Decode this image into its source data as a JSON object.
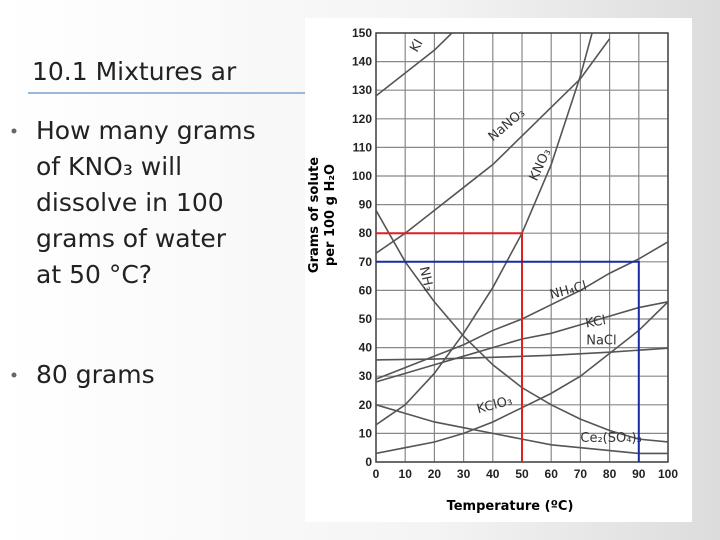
{
  "slide": {
    "title": "10.1 Mixtures ar",
    "question": [
      "How many grams",
      "of KNO₃ will",
      "dissolve in 100",
      "grams of water",
      "at 50 °C?"
    ],
    "answer": "80 grams"
  },
  "chart_data": {
    "type": "line",
    "ylabel": [
      "Grams of solute",
      "per 100 g H₂O"
    ],
    "xlabel": "Temperature (ºC)",
    "xlim": [
      0,
      100
    ],
    "xticks": [
      0,
      10,
      20,
      30,
      40,
      50,
      60,
      70,
      80,
      90,
      100
    ],
    "ylim": [
      0,
      150
    ],
    "yticks": [
      0,
      10,
      20,
      30,
      40,
      50,
      60,
      70,
      80,
      90,
      100,
      110,
      120,
      130,
      140,
      150
    ],
    "grid": true,
    "series": [
      {
        "name": "KI",
        "color": "#555",
        "x": [
          0,
          10,
          20,
          26
        ],
        "values": [
          128,
          136,
          144,
          150
        ]
      },
      {
        "name": "NaNO₃",
        "color": "#555",
        "x": [
          0,
          10,
          20,
          30,
          40,
          50,
          60,
          70,
          80
        ],
        "values": [
          73,
          80,
          88,
          96,
          104,
          114,
          124,
          134,
          148
        ]
      },
      {
        "name": "KNO₃",
        "color": "#555",
        "x": [
          0,
          10,
          20,
          30,
          40,
          50,
          60,
          70,
          74
        ],
        "values": [
          13,
          20,
          31,
          45,
          61,
          80,
          104,
          135,
          150
        ]
      },
      {
        "name": "NH₃",
        "color": "#555",
        "x": [
          0,
          10,
          20,
          30,
          40,
          50,
          60,
          70,
          80,
          90,
          100
        ],
        "values": [
          88,
          70,
          56,
          44,
          34,
          26,
          20,
          15,
          11,
          8,
          7
        ]
      },
      {
        "name": "NH₄Cl",
        "color": "#555",
        "x": [
          0,
          10,
          20,
          30,
          40,
          50,
          60,
          70,
          80,
          90,
          100
        ],
        "values": [
          29,
          33,
          37,
          41,
          46,
          50,
          55,
          60,
          66,
          71,
          77
        ]
      },
      {
        "name": "KCl",
        "color": "#555",
        "x": [
          0,
          10,
          20,
          30,
          40,
          50,
          60,
          70,
          80,
          90,
          100
        ],
        "values": [
          28,
          31,
          34,
          37,
          40,
          43,
          45,
          48,
          51,
          54,
          56
        ]
      },
      {
        "name": "NaCl",
        "color": "#555",
        "x": [
          0,
          20,
          40,
          60,
          80,
          100
        ],
        "values": [
          35.7,
          36,
          36.6,
          37.3,
          38.4,
          39.8
        ]
      },
      {
        "name": "KClO₃",
        "color": "#555",
        "x": [
          0,
          10,
          20,
          30,
          40,
          50,
          60,
          70,
          80,
          90,
          100
        ],
        "values": [
          3,
          5,
          7,
          10,
          14,
          19,
          24,
          30,
          38,
          46,
          56
        ]
      },
      {
        "name": "Ce₂(SO₄)₃",
        "color": "#555",
        "x": [
          0,
          10,
          20,
          30,
          40,
          50,
          60,
          70,
          80,
          90,
          100
        ],
        "values": [
          20,
          17,
          14,
          12,
          10,
          8,
          6,
          5,
          4,
          3,
          3
        ]
      }
    ],
    "guides": [
      {
        "x": 50,
        "y": 80,
        "color": "#e02020"
      },
      {
        "x": 90,
        "y": 70,
        "color": "#1a2aa0"
      }
    ]
  }
}
